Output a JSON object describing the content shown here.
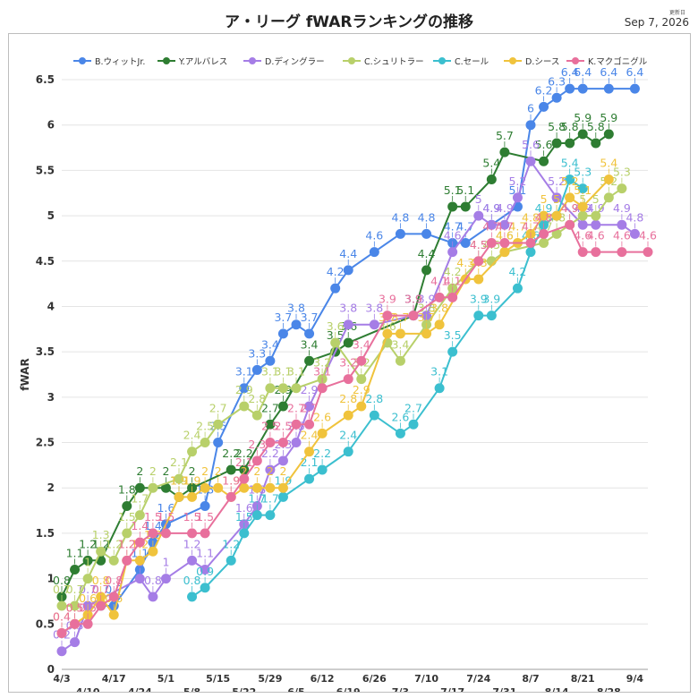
{
  "header": {
    "title": "ア・リーグ fWARランキングの推移",
    "updated_caption": "更新日",
    "updated_date": "Sep 7, 2026"
  },
  "chart_data": {
    "type": "line",
    "title": "ア・リーグ fWARランキングの推移",
    "xlabel": "",
    "ylabel": "fWAR",
    "ylim": [
      0,
      6.5
    ],
    "yticks": [
      "0",
      "0.5",
      "1",
      "1.5",
      "2",
      "2.5",
      "3",
      "3.5",
      "4",
      "4.5",
      "5",
      "5.5",
      "6",
      "6.5"
    ],
    "grid": true,
    "legend_position": "top",
    "data_labels": true,
    "x": [
      "4/3",
      "4/6",
      "4/10",
      "4/13",
      "4/17",
      "4/20",
      "4/24",
      "4/27",
      "5/1",
      "5/4",
      "5/8",
      "5/11",
      "5/15",
      "5/18",
      "5/22",
      "5/25",
      "5/29",
      "6/1",
      "6/5",
      "6/8",
      "6/12",
      "6/15",
      "6/19",
      "6/22",
      "6/26",
      "6/29",
      "7/3",
      "7/6",
      "7/10",
      "7/13",
      "7/17",
      "7/20",
      "7/24",
      "7/27",
      "7/31",
      "8/3",
      "8/7",
      "8/10",
      "8/14",
      "8/17",
      "8/21",
      "8/24",
      "8/28",
      "8/31",
      "9/4",
      "9/7"
    ],
    "xtick_labels_upper": [
      "4/3",
      "4/17",
      "5/1",
      "5/15",
      "5/29",
      "6/12",
      "6/26",
      "7/10",
      "7/24",
      "8/7",
      "8/21",
      "9/4"
    ],
    "xtick_labels_lower": [
      "4/10",
      "4/24",
      "5/8",
      "5/22",
      "6/5",
      "6/19",
      "7/3",
      "7/17",
      "7/31",
      "8/14",
      "8/28"
    ],
    "series": [
      {
        "name": "B.ウィットJr.",
        "color": "#4a86e8",
        "values": [
          null,
          null,
          null,
          0.7,
          0.7,
          null,
          1.1,
          1.4,
          1.6,
          null,
          null,
          1.8,
          2.5,
          null,
          3.1,
          3.3,
          3.4,
          3.7,
          3.8,
          3.7,
          null,
          4.2,
          4.4,
          null,
          4.6,
          null,
          4.8,
          null,
          4.8,
          null,
          4.7,
          4.7,
          null,
          4.9,
          null,
          5.1,
          6.0,
          6.2,
          6.3,
          6.4,
          6.4,
          null,
          6.4,
          null,
          6.4,
          null
        ]
      },
      {
        "name": "Y.アルバレス",
        "color": "#2e7d32",
        "values": [
          0.8,
          1.1,
          1.2,
          1.2,
          null,
          1.8,
          2.0,
          null,
          2.0,
          1.9,
          2.0,
          null,
          null,
          2.2,
          2.2,
          null,
          2.7,
          2.9,
          null,
          3.4,
          null,
          3.5,
          3.6,
          null,
          null,
          null,
          null,
          3.9,
          4.4,
          null,
          5.1,
          5.1,
          null,
          5.4,
          5.7,
          null,
          null,
          5.6,
          5.8,
          5.8,
          5.9,
          5.8,
          5.9,
          null,
          null,
          null
        ]
      },
      {
        "name": "D.ディングラー",
        "color": "#a57de6",
        "values": [
          0.2,
          0.3,
          0.7,
          null,
          null,
          null,
          1.0,
          0.8,
          1.0,
          null,
          1.2,
          1.1,
          null,
          null,
          1.6,
          1.8,
          2.2,
          2.3,
          2.5,
          2.9,
          null,
          null,
          3.8,
          null,
          3.8,
          null,
          null,
          3.9,
          3.9,
          null,
          4.6,
          null,
          5.0,
          4.9,
          4.9,
          5.2,
          5.6,
          null,
          5.2,
          null,
          4.9,
          4.9,
          null,
          4.9,
          4.8,
          null
        ]
      },
      {
        "name": "C.シュリトラー",
        "color": "#b8d06a",
        "values": [
          0.7,
          0.7,
          1.0,
          1.3,
          1.2,
          1.5,
          1.7,
          2.0,
          null,
          2.1,
          2.4,
          2.5,
          2.7,
          null,
          2.9,
          2.8,
          3.1,
          3.1,
          3.1,
          null,
          3.2,
          3.6,
          null,
          3.2,
          null,
          3.6,
          3.4,
          null,
          3.8,
          null,
          4.2,
          null,
          4.5,
          4.5,
          4.6,
          null,
          null,
          4.7,
          4.8,
          4.9,
          5.0,
          5.0,
          5.2,
          5.3,
          null,
          null
        ]
      },
      {
        "name": "C.セール",
        "color": "#3bbfcf",
        "values": [
          null,
          null,
          null,
          null,
          null,
          null,
          null,
          null,
          null,
          null,
          0.8,
          0.9,
          null,
          1.2,
          1.5,
          1.7,
          1.7,
          1.9,
          null,
          2.1,
          2.2,
          null,
          2.4,
          null,
          2.8,
          null,
          2.6,
          2.7,
          null,
          3.1,
          3.5,
          null,
          3.9,
          3.9,
          null,
          4.2,
          4.6,
          4.9,
          5.0,
          5.4,
          5.3,
          null,
          null,
          null,
          null,
          null
        ]
      },
      {
        "name": "D.シース",
        "color": "#f0c33c",
        "values": [
          0.4,
          0.5,
          0.6,
          0.8,
          0.6,
          1.2,
          1.2,
          1.3,
          null,
          1.9,
          1.9,
          2.0,
          2.0,
          1.9,
          2.0,
          2.0,
          2.0,
          2.0,
          null,
          2.4,
          2.6,
          null,
          2.8,
          2.9,
          null,
          3.7,
          3.7,
          null,
          3.7,
          3.8,
          null,
          4.3,
          4.3,
          null,
          4.6,
          4.7,
          4.8,
          5.0,
          5.0,
          5.2,
          5.1,
          null,
          5.4,
          null,
          null,
          null
        ]
      },
      {
        "name": "K.マクゴニグル",
        "color": "#e8709c",
        "values": [
          0.4,
          0.5,
          0.5,
          0.7,
          0.8,
          1.2,
          1.4,
          1.5,
          1.5,
          null,
          1.5,
          1.5,
          null,
          1.9,
          2.1,
          2.3,
          2.5,
          2.5,
          2.7,
          2.7,
          3.1,
          null,
          3.2,
          3.4,
          null,
          3.9,
          null,
          3.9,
          null,
          4.1,
          4.1,
          null,
          4.5,
          4.7,
          4.7,
          null,
          4.7,
          4.8,
          null,
          4.9,
          4.6,
          4.6,
          null,
          4.6,
          null,
          4.6
        ]
      }
    ]
  }
}
